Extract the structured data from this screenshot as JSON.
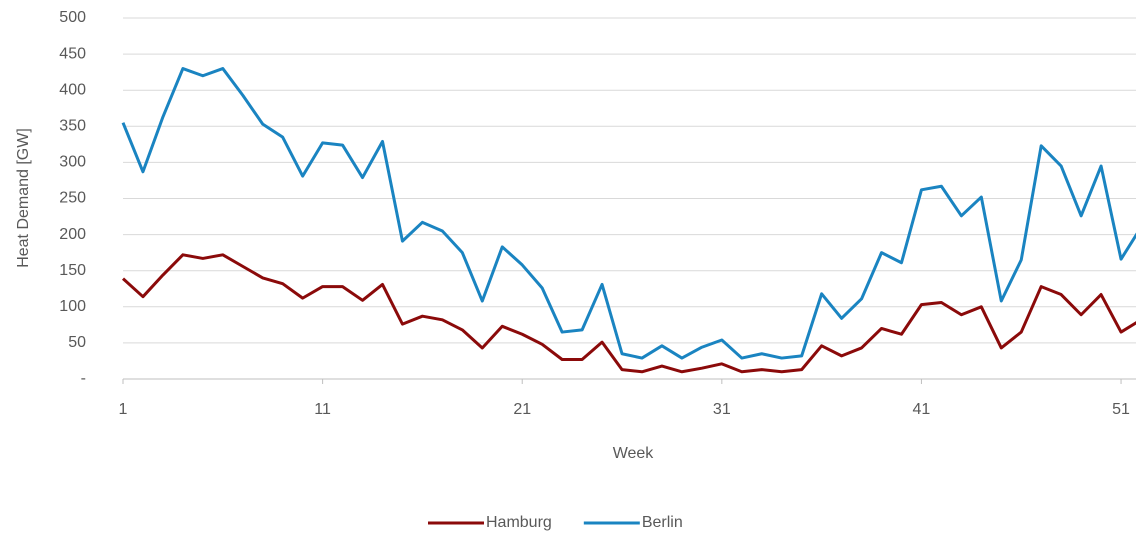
{
  "chart_data": {
    "type": "line",
    "x_label": "Week",
    "y_label": "Heat Demand [GW]",
    "x": [
      1,
      2,
      3,
      4,
      5,
      6,
      7,
      8,
      9,
      10,
      11,
      12,
      13,
      14,
      15,
      16,
      17,
      18,
      19,
      20,
      21,
      22,
      23,
      24,
      25,
      26,
      27,
      28,
      29,
      30,
      31,
      32,
      33,
      34,
      35,
      36,
      37,
      38,
      39,
      40,
      41,
      42,
      43,
      44,
      45,
      46,
      47,
      48,
      49,
      50,
      51,
      52
    ],
    "series": [
      {
        "name": "Hamburg",
        "color": "#8b0a0a",
        "values": [
          139,
          114,
          144,
          172,
          167,
          172,
          156,
          140,
          132,
          112,
          128,
          128,
          109,
          131,
          76,
          87,
          82,
          68,
          43,
          73,
          62,
          48,
          27,
          27,
          51,
          13,
          10,
          18,
          10,
          15,
          21,
          10,
          13,
          10,
          13,
          46,
          32,
          43,
          70,
          62,
          103,
          106,
          89,
          100,
          43,
          65,
          128,
          117,
          89,
          117,
          65,
          82
        ]
      },
      {
        "name": "Berlin",
        "color": "#1a84c1",
        "values": [
          355,
          287,
          363,
          430,
          420,
          430,
          393,
          353,
          335,
          281,
          327,
          324,
          279,
          329,
          191,
          217,
          205,
          175,
          108,
          183,
          158,
          126,
          65,
          68,
          131,
          35,
          29,
          46,
          29,
          44,
          54,
          29,
          35,
          29,
          32,
          118,
          84,
          111,
          175,
          161,
          262,
          267,
          226,
          252,
          108,
          165,
          323,
          295,
          226,
          295,
          166,
          210
        ]
      }
    ],
    "xlim": [
      1,
      52
    ],
    "xticks": [
      1,
      11,
      21,
      31,
      41,
      51
    ],
    "ylim": [
      0,
      500
    ],
    "yticks": [
      {
        "value": 0,
        "label": "-"
      },
      50,
      100,
      150,
      200,
      250,
      300,
      350,
      400,
      450,
      500
    ],
    "grid": true,
    "legend": "bottom"
  }
}
